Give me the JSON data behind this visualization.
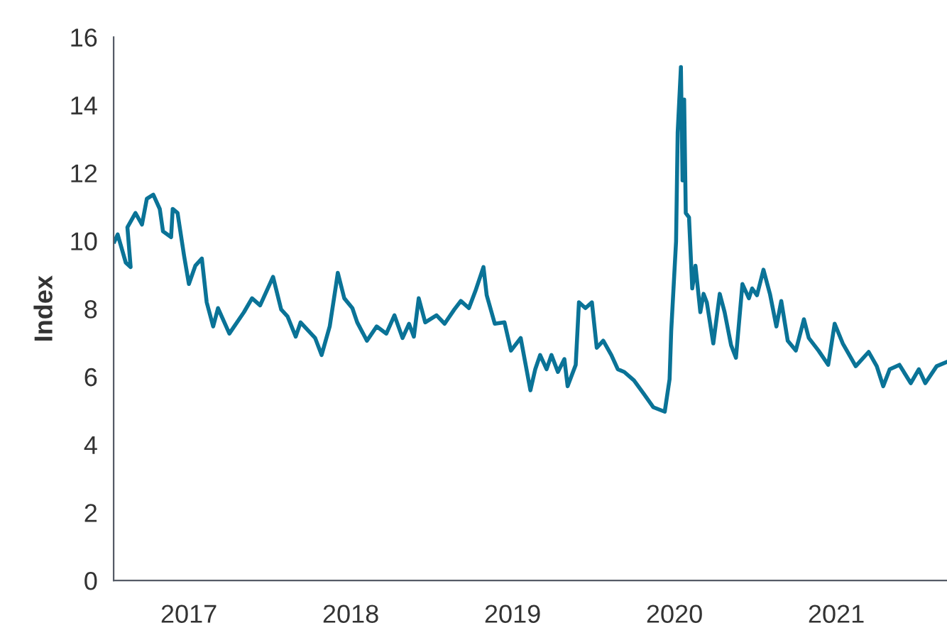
{
  "chart_data": {
    "type": "line",
    "ylabel": "Index",
    "xlim": [
      2016.535,
      2021.684
    ],
    "xticks": [
      2017,
      2018,
      2019,
      2020,
      2021
    ],
    "ylim": [
      0,
      16
    ],
    "yticks": [
      0,
      2,
      4,
      6,
      8,
      10,
      12,
      14,
      16
    ],
    "grid": false,
    "marker": "none",
    "line_style": "solid",
    "series": [
      {
        "color": "#0a7397",
        "x": [
          2016.54,
          2016.56,
          2016.61,
          2016.64,
          2016.62,
          2016.67,
          2016.71,
          2016.74,
          2016.78,
          2016.82,
          2016.84,
          2016.89,
          2016.9,
          2016.93,
          2016.97,
          2017.0,
          2017.04,
          2017.08,
          2017.11,
          2017.15,
          2017.18,
          2017.25,
          2017.34,
          2017.39,
          2017.44,
          2017.52,
          2017.57,
          2017.61,
          2017.66,
          2017.69,
          2017.78,
          2017.82,
          2017.87,
          2017.91,
          2017.92,
          2017.96,
          2018.01,
          2018.04,
          2018.1,
          2018.16,
          2018.22,
          2018.27,
          2018.32,
          2018.36,
          2018.39,
          2018.42,
          2018.46,
          2018.53,
          2018.58,
          2018.64,
          2018.68,
          2018.73,
          2018.77,
          2018.82,
          2018.84,
          2018.89,
          2018.95,
          2018.99,
          2019.05,
          2019.11,
          2019.14,
          2019.17,
          2019.21,
          2019.24,
          2019.28,
          2019.32,
          2019.34,
          2019.39,
          2019.41,
          2019.45,
          2019.49,
          2019.52,
          2019.56,
          2019.61,
          2019.65,
          2019.69,
          2019.75,
          2019.81,
          2019.87,
          2019.94,
          2019.97,
          2019.98,
          2020.01,
          2020.02,
          2020.04,
          2020.05,
          2020.06,
          2020.07,
          2020.09,
          2020.11,
          2020.13,
          2020.16,
          2020.18,
          2020.2,
          2020.24,
          2020.28,
          2020.31,
          2020.35,
          2020.38,
          2020.42,
          2020.46,
          2020.48,
          2020.51,
          2020.55,
          2020.59,
          2020.63,
          2020.66,
          2020.7,
          2020.75,
          2020.8,
          2020.83,
          2020.89,
          2020.95,
          2020.99,
          2021.04,
          2021.12,
          2021.2,
          2021.25,
          2021.29,
          2021.33,
          2021.39,
          2021.46,
          2021.51,
          2021.55,
          2021.62,
          2021.68
        ],
        "values": [
          9.98,
          10.19,
          9.36,
          9.23,
          10.4,
          10.82,
          10.48,
          11.24,
          11.36,
          10.94,
          10.28,
          10.11,
          10.94,
          10.82,
          9.57,
          8.73,
          9.27,
          9.48,
          8.19,
          7.48,
          8.02,
          7.27,
          7.9,
          8.31,
          8.1,
          8.94,
          7.98,
          7.77,
          7.18,
          7.6,
          7.14,
          6.64,
          7.48,
          8.73,
          9.06,
          8.31,
          8.02,
          7.6,
          7.06,
          7.48,
          7.27,
          7.81,
          7.14,
          7.56,
          7.18,
          8.31,
          7.6,
          7.81,
          7.56,
          7.98,
          8.23,
          8.02,
          8.52,
          9.23,
          8.4,
          7.56,
          7.6,
          6.77,
          7.14,
          5.6,
          6.22,
          6.64,
          6.22,
          6.64,
          6.14,
          6.52,
          5.72,
          6.35,
          8.19,
          8.02,
          8.19,
          6.85,
          7.06,
          6.64,
          6.22,
          6.14,
          5.89,
          5.5,
          5.1,
          4.97,
          5.93,
          7.35,
          9.98,
          13.2,
          15.12,
          11.78,
          14.16,
          10.82,
          10.69,
          8.6,
          9.27,
          7.9,
          8.44,
          8.19,
          6.98,
          8.44,
          7.9,
          6.93,
          6.56,
          8.73,
          8.31,
          8.6,
          8.4,
          9.15,
          8.44,
          7.48,
          8.23,
          7.06,
          6.77,
          7.69,
          7.14,
          6.77,
          6.35,
          7.56,
          6.98,
          6.31,
          6.73,
          6.31,
          5.72,
          6.22,
          6.35,
          5.81,
          6.22,
          5.81,
          6.31,
          6.43
        ]
      }
    ]
  }
}
